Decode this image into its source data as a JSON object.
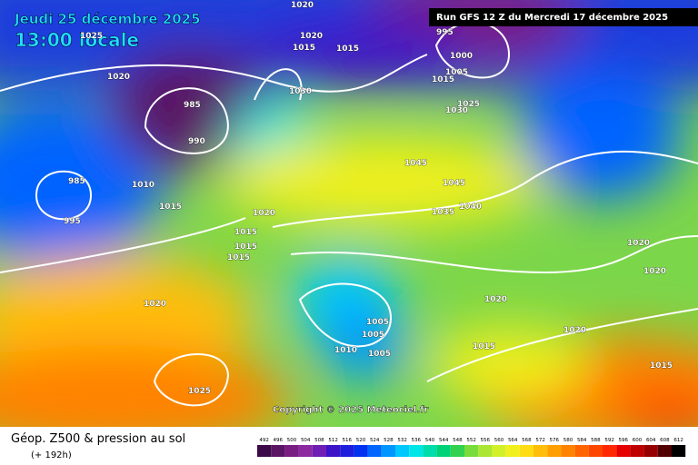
{
  "header": {
    "date": "Jeudi 25 décembre 2025",
    "time": "13:00 locale",
    "run": "Run GFS 12 Z du Mercredi 17 décembre 2025"
  },
  "copyright": "Copyright © 2025 Meteociel.fr",
  "footer": {
    "title": "Géop. Z500 & pression au sol",
    "lead": "(+ 192h)"
  },
  "isobar_labels": [
    1020,
    1025,
    1020,
    1020,
    1015,
    1015,
    985,
    990,
    985,
    1010,
    1015,
    995,
    1020,
    1015,
    1015,
    1015,
    1030,
    995,
    1000,
    1005,
    1015,
    1025,
    1030,
    1045,
    1045,
    1040,
    1035,
    1020,
    1020,
    1020,
    1020,
    1015,
    1015,
    1005,
    1005,
    1010,
    1005,
    1020,
    1025
  ],
  "scale": {
    "values": [
      492,
      496,
      500,
      504,
      508,
      512,
      516,
      520,
      524,
      528,
      532,
      536,
      540,
      544,
      548,
      552,
      556,
      560,
      564,
      568,
      572,
      576,
      580,
      584,
      588,
      592,
      596,
      600,
      604,
      608,
      612
    ],
    "colors": [
      "#3c0a46",
      "#5a1464",
      "#781e82",
      "#8c28a0",
      "#6e1eb4",
      "#3c14c8",
      "#1e1edc",
      "#0032f0",
      "#0064ff",
      "#0096ff",
      "#00c8ff",
      "#00e6e6",
      "#00dcaa",
      "#00d278",
      "#32d250",
      "#78dc3c",
      "#aae632",
      "#d2f028",
      "#f0f01e",
      "#ffdc14",
      "#ffbe0a",
      "#ffa000",
      "#ff8200",
      "#ff6400",
      "#ff4600",
      "#ff2800",
      "#e60000",
      "#be0000",
      "#960000",
      "#500000",
      "#000000"
    ]
  }
}
